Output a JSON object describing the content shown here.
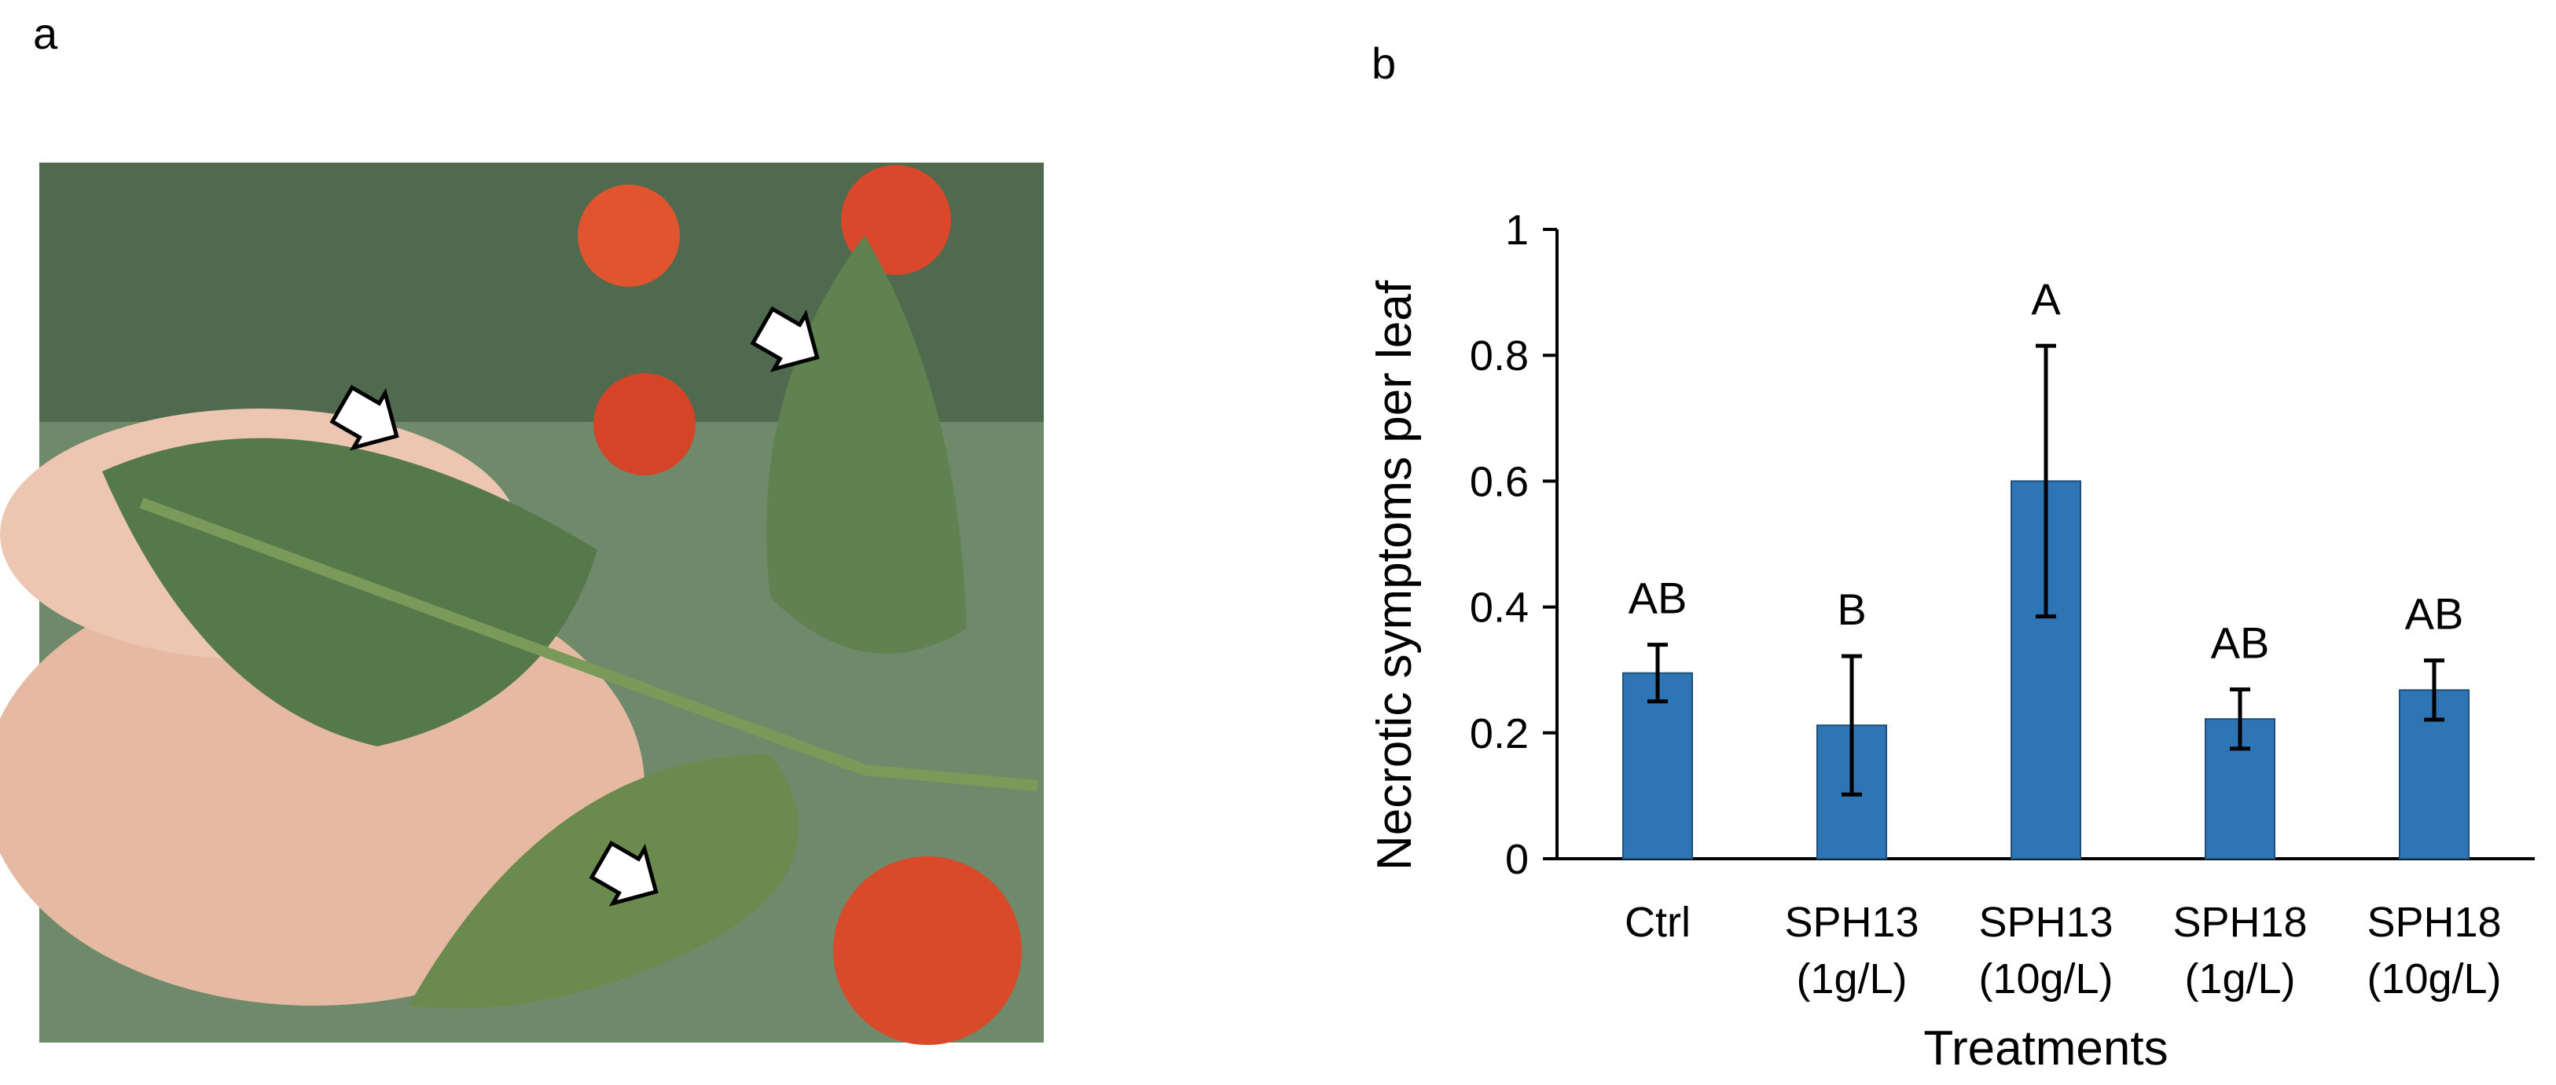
{
  "panel_a": {
    "label": "a"
  },
  "chart_data": {
    "type": "bar",
    "panel_label": "b",
    "y_label": "Necrotic symptoms per leaf",
    "x_label": "Treatments",
    "categories": [
      [
        "Ctrl"
      ],
      [
        "SPH13",
        "(1g/L)"
      ],
      [
        "SPH13",
        "(10g/L)"
      ],
      [
        "SPH18",
        "(1g/L)"
      ],
      [
        "SPH18",
        "(10g/L)"
      ]
    ],
    "values": [
      0.295,
      0.212,
      0.6,
      0.222,
      0.268
    ],
    "errors": [
      0.045,
      0.11,
      0.215,
      0.047,
      0.047
    ],
    "letters": [
      "AB",
      "B",
      "A",
      "AB",
      "AB"
    ],
    "color": "#2e75b6",
    "ylim": [
      0,
      1
    ],
    "yticks": [
      0,
      0.2,
      0.4,
      0.6,
      0.8,
      1
    ],
    "grid": false
  }
}
